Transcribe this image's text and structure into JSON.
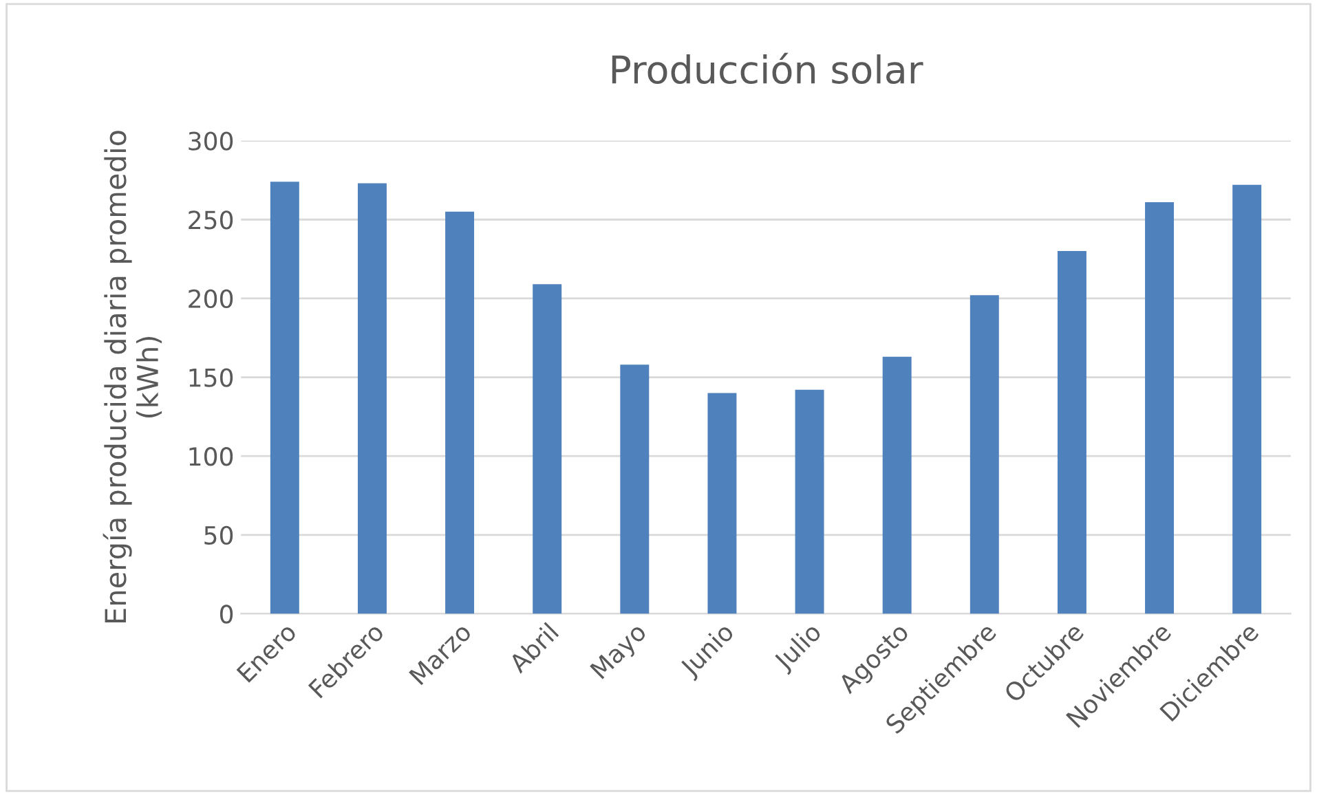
{
  "chart_data": {
    "type": "bar",
    "title": "Producción solar",
    "ylabel": "Energía producida diaria promedio\n(kWh)",
    "categories": [
      "Enero",
      "Febrero",
      "Marzo",
      "Abril",
      "Mayo",
      "Junio",
      "Julio",
      "Agosto",
      "Septiembre",
      "Octubre",
      "Noviembre",
      "Diciembre"
    ],
    "values": [
      274,
      273,
      255,
      209,
      158,
      140,
      142,
      163,
      202,
      230,
      261,
      272
    ],
    "color": "#4f81bd",
    "ylim": [
      0,
      300
    ],
    "yticks": [
      0,
      50,
      100,
      150,
      200,
      250,
      300
    ],
    "grid": "y"
  }
}
